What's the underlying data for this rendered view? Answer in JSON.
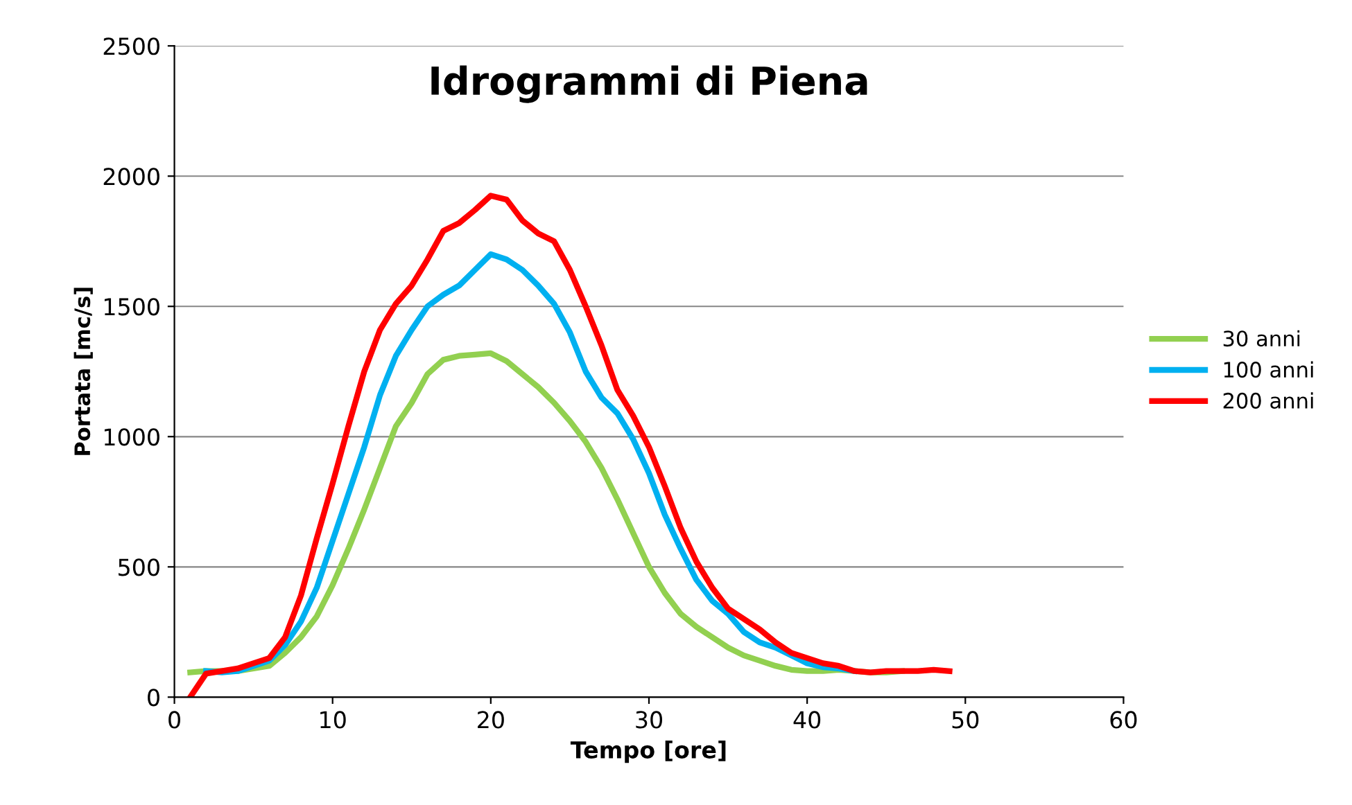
{
  "chart_data": {
    "type": "line",
    "title": "Idrogrammi di Piena",
    "xlabel": "Tempo [ore]",
    "ylabel": "Portata [mc/s]",
    "xlim": [
      0,
      60
    ],
    "xticks": [
      0,
      10,
      20,
      30,
      40,
      50,
      60
    ],
    "ylim": [
      0,
      2500
    ],
    "yticks": [
      0,
      500,
      1000,
      1500,
      2000,
      2500
    ],
    "grid": "y",
    "legend": "right",
    "marker": "none",
    "line_style": "solid",
    "series": [
      {
        "name": "30 anni",
        "color": "#92d050",
        "x": [
          1,
          2,
          3,
          4,
          5,
          6,
          7,
          8,
          9,
          10,
          11,
          12,
          13,
          14,
          15,
          16,
          17,
          18,
          19,
          20,
          21,
          22,
          23,
          24,
          25,
          26,
          27,
          28,
          29,
          30,
          31,
          32,
          33,
          34,
          35,
          36,
          37,
          38,
          39,
          40,
          41,
          42,
          43,
          44,
          45,
          46
        ],
        "values": [
          95,
          100,
          100,
          100,
          110,
          120,
          170,
          230,
          310,
          430,
          570,
          720,
          880,
          1040,
          1130,
          1240,
          1295,
          1310,
          1315,
          1320,
          1290,
          1240,
          1190,
          1130,
          1060,
          980,
          880,
          760,
          630,
          500,
          400,
          320,
          270,
          230,
          190,
          160,
          140,
          120,
          105,
          100,
          100,
          105,
          100,
          95,
          95,
          100
        ]
      },
      {
        "name": "100 anni",
        "color": "#00b0f0",
        "x": [
          2,
          3,
          4,
          5,
          6,
          7,
          8,
          9,
          10,
          11,
          12,
          13,
          14,
          15,
          16,
          17,
          18,
          19,
          20,
          21,
          22,
          23,
          24,
          25,
          26,
          27,
          28,
          29,
          30,
          31,
          32,
          33,
          34,
          35,
          36,
          37,
          38,
          39,
          40,
          41,
          42,
          43
        ],
        "values": [
          100,
          95,
          100,
          120,
          140,
          200,
          290,
          420,
          600,
          780,
          960,
          1160,
          1310,
          1410,
          1500,
          1545,
          1580,
          1640,
          1700,
          1680,
          1640,
          1580,
          1510,
          1400,
          1250,
          1150,
          1090,
          990,
          860,
          700,
          570,
          450,
          370,
          320,
          250,
          210,
          190,
          160,
          130,
          115,
          110,
          100
        ]
      },
      {
        "name": "200 anni",
        "color": "#ff0000",
        "x": [
          1,
          2,
          3,
          4,
          5,
          6,
          7,
          8,
          9,
          10,
          11,
          12,
          13,
          14,
          15,
          16,
          17,
          18,
          19,
          20,
          21,
          22,
          23,
          24,
          25,
          26,
          27,
          28,
          29,
          30,
          31,
          32,
          33,
          34,
          35,
          36,
          37,
          38,
          39,
          40,
          41,
          42,
          43,
          44,
          45,
          46,
          47,
          48,
          49
        ],
        "values": [
          0,
          90,
          100,
          110,
          130,
          150,
          230,
          390,
          610,
          820,
          1040,
          1250,
          1410,
          1510,
          1580,
          1680,
          1790,
          1820,
          1870,
          1925,
          1910,
          1830,
          1780,
          1750,
          1640,
          1500,
          1350,
          1180,
          1080,
          960,
          810,
          650,
          520,
          420,
          340,
          300,
          260,
          210,
          170,
          150,
          130,
          120,
          100,
          95,
          100,
          100,
          100,
          105,
          100
        ]
      }
    ]
  }
}
